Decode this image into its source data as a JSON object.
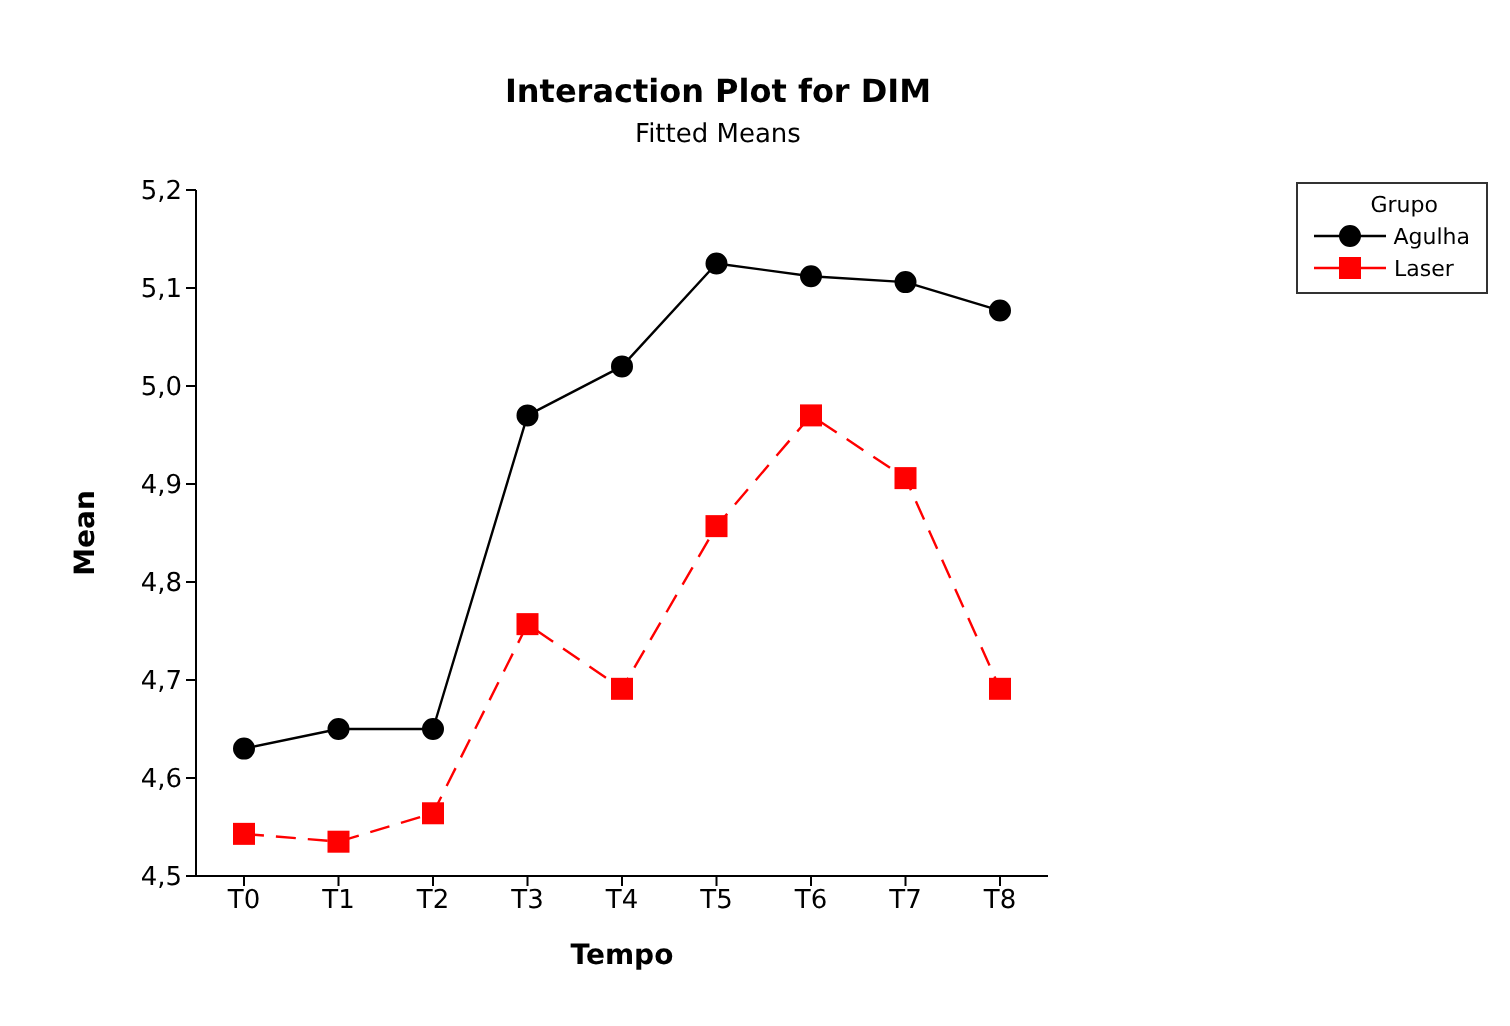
{
  "chart_data": {
    "type": "line",
    "title": "Interaction Plot for DIM",
    "subtitle": "Fitted Means",
    "xlabel": "Tempo",
    "ylabel": "Mean",
    "legend_title": "Grupo",
    "legend": "top right",
    "grid": false,
    "categories": [
      "T0",
      "T1",
      "T2",
      "T3",
      "T4",
      "T5",
      "T6",
      "T7",
      "T8"
    ],
    "series": [
      {
        "name": "Agulha",
        "color": "#000000",
        "marker": "circle",
        "line_style": "solid",
        "values": [
          4.63,
          4.65,
          4.65,
          4.97,
          5.02,
          5.125,
          5.112,
          5.106,
          5.077
        ]
      },
      {
        "name": "Laser",
        "color": "#ff0000",
        "marker": "square",
        "line_style": "dashed",
        "values": [
          4.543,
          4.535,
          4.564,
          4.757,
          4.691,
          4.857,
          4.97,
          4.906,
          4.691
        ]
      }
    ],
    "ylim": [
      4.5,
      5.2
    ],
    "yticks": [
      {
        "value": 4.5,
        "label": "4,5"
      },
      {
        "value": 4.6,
        "label": "4,6"
      },
      {
        "value": 4.7,
        "label": "4,7"
      },
      {
        "value": 4.8,
        "label": "4,8"
      },
      {
        "value": 4.9,
        "label": "4,9"
      },
      {
        "value": 5.0,
        "label": "5,0"
      },
      {
        "value": 5.1,
        "label": "5,1"
      },
      {
        "value": 5.2,
        "label": "5,2"
      }
    ]
  }
}
